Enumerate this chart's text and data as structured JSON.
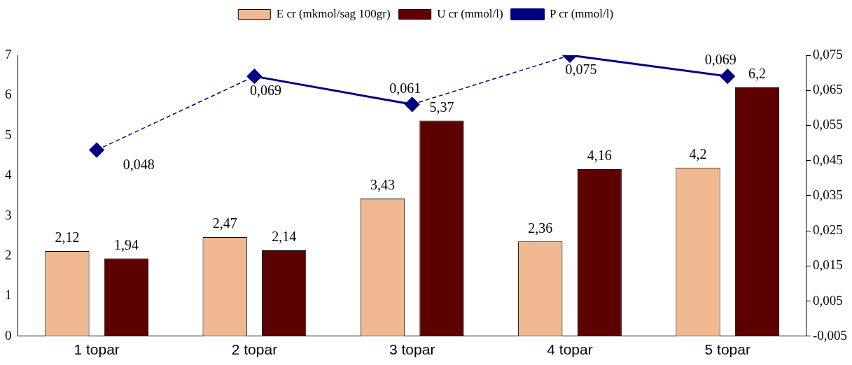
{
  "chart_data": {
    "type": "bar",
    "categories": [
      "1 topar",
      "2 topar",
      "3 topar",
      "4 topar",
      "5 topar"
    ],
    "series": [
      {
        "name": "E cr (mkmol/sag 100gr)",
        "color": "#f0b890",
        "values": [
          2.12,
          2.47,
          3.43,
          2.36,
          4.2
        ],
        "value_labels": [
          "2,12",
          "2,47",
          "3,43",
          "2,36",
          "4,2"
        ]
      },
      {
        "name": "U cr (mmol/l)",
        "color": "#5c0000",
        "values": [
          1.94,
          2.14,
          5.37,
          4.16,
          6.2
        ],
        "value_labels": [
          "1,94",
          "2,14",
          "5,37",
          "4,16",
          "6,2"
        ]
      },
      {
        "name": "P cr (mmol/l)",
        "type": "line",
        "axis": "y2",
        "color": "#000080",
        "marker": "diamond",
        "line_style": [
          "dashed",
          "solid",
          "dashed",
          "solid"
        ],
        "values": [
          0.048,
          0.069,
          0.061,
          0.075,
          0.069
        ],
        "value_labels": [
          "0,048",
          "0,069",
          "0,061",
          "0,075",
          "0,069"
        ]
      }
    ],
    "ylim": [
      0,
      7
    ],
    "yticks": [
      0,
      1,
      2,
      3,
      4,
      5,
      6,
      7
    ],
    "y2lim": [
      -0.005,
      0.075
    ],
    "y2ticks": [
      {
        "value": -0.005,
        "label": "-0,005"
      },
      {
        "value": 0.005,
        "label": "0,005"
      },
      {
        "value": 0.015,
        "label": "0,015"
      },
      {
        "value": 0.025,
        "label": "0,025"
      },
      {
        "value": 0.035,
        "label": "0,035"
      },
      {
        "value": 0.045,
        "label": "0,045"
      },
      {
        "value": 0.055,
        "label": "0,055"
      },
      {
        "value": 0.065,
        "label": "0,065"
      },
      {
        "value": 0.075,
        "label": "0,075"
      }
    ],
    "grid": false,
    "legend": "top"
  }
}
